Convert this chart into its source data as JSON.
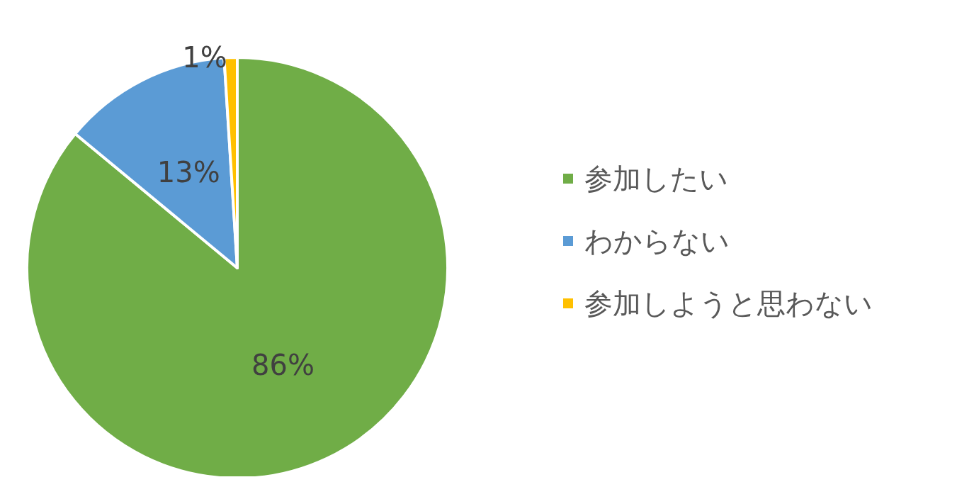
{
  "chart_data": {
    "type": "pie",
    "categories": [
      "参加したい",
      "わからない",
      "参加しようと思わない"
    ],
    "values": [
      86,
      13,
      1
    ],
    "colors": [
      "#70ad47",
      "#5b9bd5",
      "#ffc000"
    ],
    "value_labels": [
      "86%",
      "13%",
      "1%"
    ],
    "legend": "right"
  }
}
